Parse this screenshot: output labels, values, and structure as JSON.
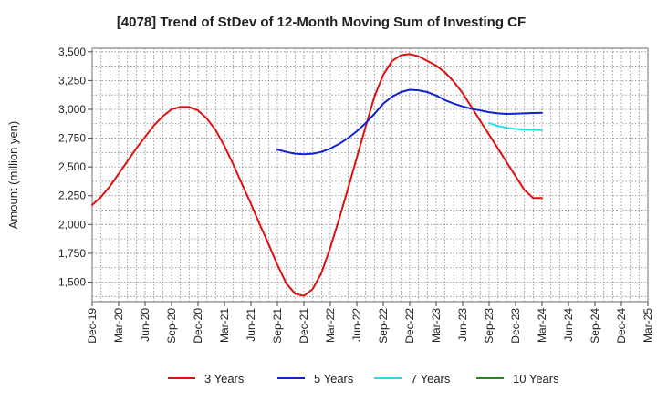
{
  "chart_data": {
    "type": "line",
    "title": "[4078]  Trend of StDev of 12-Month Moving Sum of Investing CF",
    "xlabel": "",
    "ylabel": "Amount (million yen)",
    "ylim": [
      1330,
      3530
    ],
    "y_ticks": [
      1500,
      1750,
      2000,
      2250,
      2500,
      2750,
      3000,
      3250,
      3500
    ],
    "y_tick_labels": [
      "1,500",
      "1,750",
      "2,000",
      "2,250",
      "2,500",
      "2,750",
      "3,000",
      "3,250",
      "3,500"
    ],
    "x_ticks": [
      "Dec-19",
      "Mar-20",
      "Jun-20",
      "Sep-20",
      "Dec-20",
      "Mar-21",
      "Jun-21",
      "Sep-21",
      "Dec-21",
      "Mar-22",
      "Jun-22",
      "Sep-22",
      "Dec-22",
      "Mar-23",
      "Jun-23",
      "Sep-23",
      "Dec-23",
      "Mar-24",
      "Jun-24",
      "Sep-24",
      "Dec-24",
      "Mar-25"
    ],
    "grid": true,
    "legend_position": "bottom",
    "series": [
      {
        "name": "3 Years",
        "color": "#dd1111",
        "x": [
          "Dec-19",
          "Jan-20",
          "Feb-20",
          "Mar-20",
          "Apr-20",
          "May-20",
          "Jun-20",
          "Jul-20",
          "Aug-20",
          "Sep-20",
          "Oct-20",
          "Nov-20",
          "Dec-20",
          "Jan-21",
          "Feb-21",
          "Mar-21",
          "Apr-21",
          "May-21",
          "Jun-21",
          "Jul-21",
          "Aug-21",
          "Sep-21",
          "Oct-21",
          "Nov-21",
          "Dec-21",
          "Jan-22",
          "Feb-22",
          "Mar-22",
          "Apr-22",
          "May-22",
          "Jun-22",
          "Jul-22",
          "Aug-22",
          "Sep-22",
          "Oct-22",
          "Nov-22",
          "Dec-22",
          "Jan-23",
          "Feb-23",
          "Mar-23",
          "Apr-23",
          "May-23",
          "Jun-23",
          "Jul-23",
          "Aug-23",
          "Sep-23",
          "Oct-23",
          "Nov-23",
          "Dec-23",
          "Jan-24",
          "Feb-24",
          "Mar-24"
        ],
        "values": [
          2170,
          2240,
          2330,
          2440,
          2550,
          2660,
          2760,
          2860,
          2940,
          3000,
          3020,
          3020,
          2990,
          2920,
          2820,
          2680,
          2520,
          2350,
          2180,
          2000,
          1830,
          1650,
          1490,
          1400,
          1380,
          1440,
          1580,
          1800,
          2050,
          2310,
          2580,
          2850,
          3110,
          3300,
          3420,
          3470,
          3480,
          3460,
          3420,
          3380,
          3320,
          3240,
          3140,
          3020,
          2900,
          2780,
          2660,
          2540,
          2420,
          2300,
          2230,
          2230
        ],
        "plot_n": 52
      },
      {
        "name": "5 Years",
        "color": "#1122cc",
        "x": [
          "Sep-21",
          "Oct-21",
          "Nov-21",
          "Dec-21",
          "Jan-22",
          "Feb-22",
          "Mar-22",
          "Apr-22",
          "May-22",
          "Jun-22",
          "Jul-22",
          "Aug-22",
          "Sep-22",
          "Oct-22",
          "Nov-22",
          "Dec-22",
          "Jan-23",
          "Feb-23",
          "Mar-23",
          "Apr-23",
          "May-23",
          "Jun-23",
          "Jul-23",
          "Aug-23",
          "Sep-23",
          "Oct-23",
          "Nov-23",
          "Dec-23",
          "Jan-24",
          "Feb-24",
          "Mar-24"
        ],
        "values": [
          2650,
          2630,
          2615,
          2610,
          2615,
          2630,
          2660,
          2700,
          2750,
          2810,
          2880,
          2960,
          3050,
          3110,
          3150,
          3170,
          3165,
          3150,
          3120,
          3080,
          3050,
          3025,
          3005,
          2990,
          2975,
          2965,
          2960,
          2962,
          2965,
          2968,
          2970
        ]
      },
      {
        "name": "7 Years",
        "color": "#22dddd",
        "x": [
          "Sep-23",
          "Oct-23",
          "Nov-23",
          "Dec-23",
          "Jan-24",
          "Feb-24",
          "Mar-24"
        ],
        "values": [
          2880,
          2855,
          2840,
          2830,
          2825,
          2822,
          2820
        ]
      },
      {
        "name": "10 Years",
        "color": "#228822",
        "x": [],
        "values": []
      }
    ]
  }
}
